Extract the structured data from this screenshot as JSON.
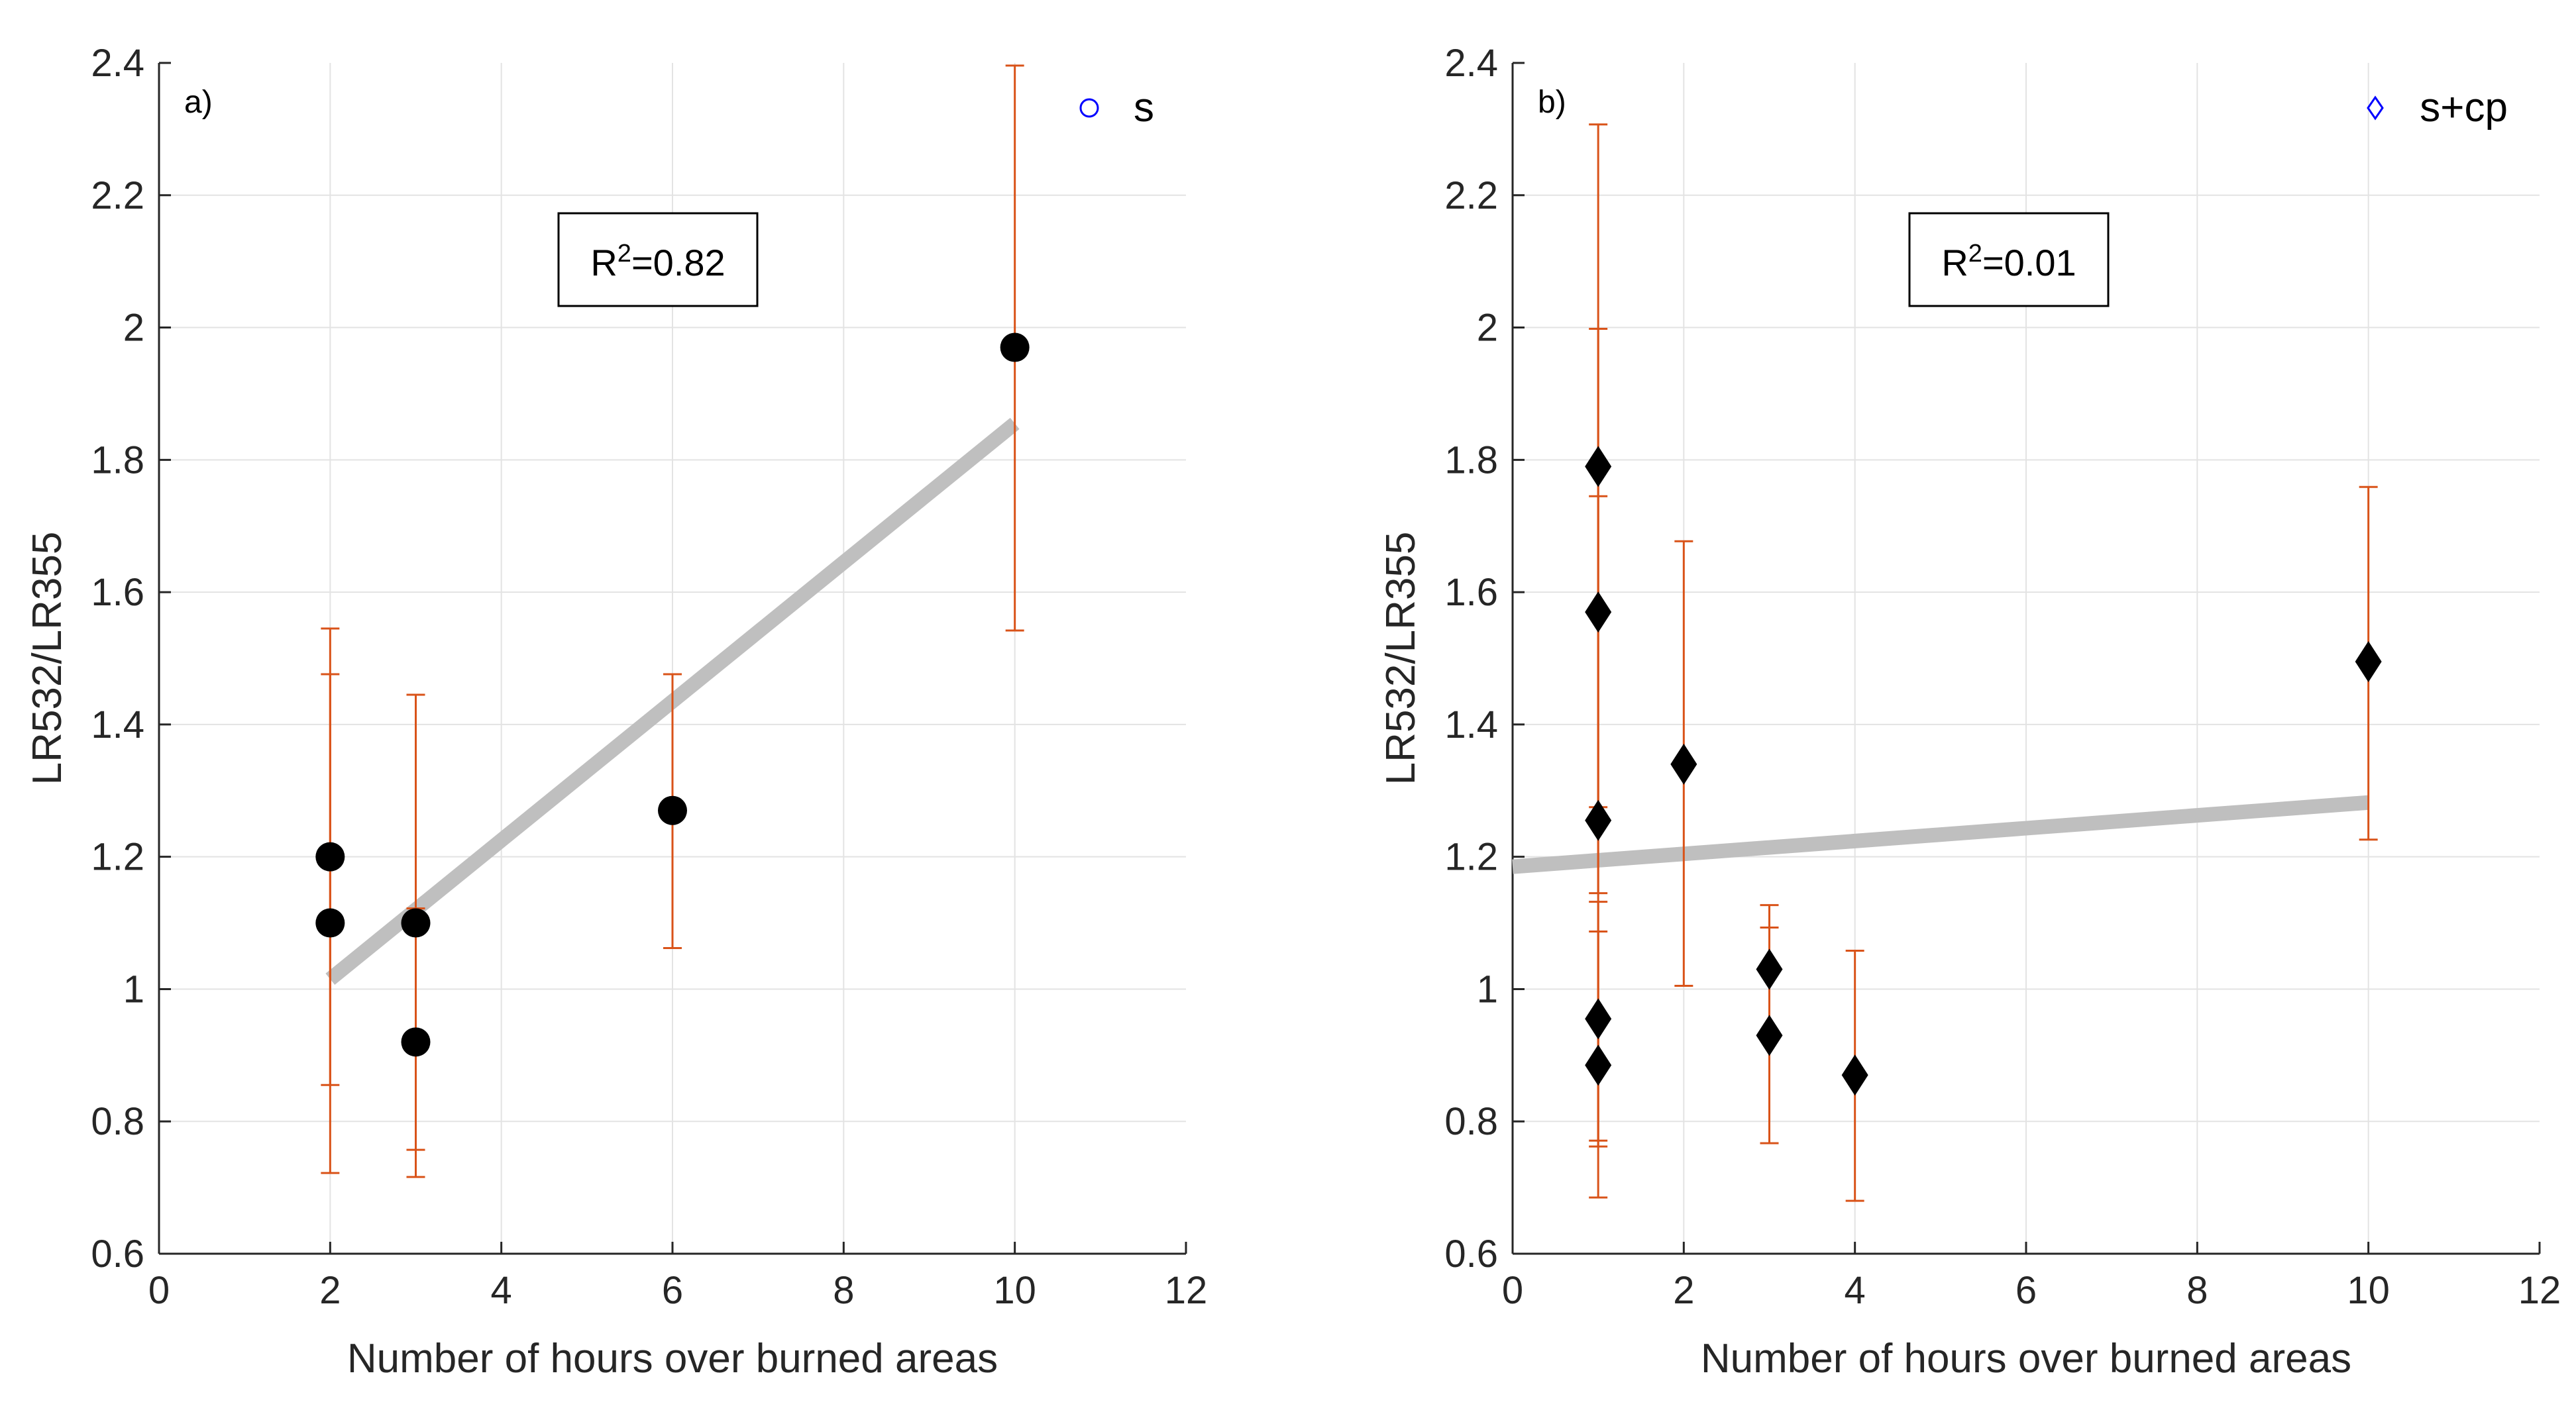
{
  "chart_data": [
    {
      "panel_id": "a",
      "type": "scatter",
      "panel_label": "a)",
      "xlabel": "Number of hours over burned areas",
      "ylabel": "LR532/LR355",
      "xlim": [
        0,
        12
      ],
      "ylim": [
        0.6,
        2.4
      ],
      "xticks": [
        0,
        2,
        4,
        6,
        8,
        10,
        12
      ],
      "xtick_labels": [
        "0",
        "2",
        "4",
        "6",
        "8",
        "10",
        "12"
      ],
      "yticks": [
        0.6,
        0.8,
        1,
        1.2,
        1.4,
        1.6,
        1.8,
        2,
        2.2,
        2.4
      ],
      "ytick_labels": [
        "0.6",
        "0.8",
        "1",
        "1.2",
        "1.4",
        "1.6",
        "1.8",
        "2",
        "2.2",
        "2.4"
      ],
      "grid": true,
      "legend": {
        "label": "s",
        "marker": "circle",
        "placement": "top-right"
      },
      "annotation": {
        "prefix": "R",
        "superscript": "2",
        "suffix": "=0.82"
      },
      "marker": "circle",
      "points": [
        {
          "x": 2,
          "y": 1.2,
          "err_low": 0.855,
          "err_high": 1.545
        },
        {
          "x": 2,
          "y": 1.1,
          "err_low": 0.722,
          "err_high": 1.476
        },
        {
          "x": 3,
          "y": 1.1,
          "err_low": 0.757,
          "err_high": 1.445
        },
        {
          "x": 3,
          "y": 0.92,
          "err_low": 0.716,
          "err_high": 1.122
        },
        {
          "x": 6,
          "y": 1.27,
          "err_low": 1.062,
          "err_high": 1.476
        },
        {
          "x": 10,
          "y": 1.97,
          "err_low": 1.542,
          "err_high": 2.396
        }
      ],
      "fit_line": {
        "x": [
          2,
          10
        ],
        "y": [
          1.015,
          1.855
        ]
      },
      "colors": {
        "marker": "#000000",
        "error_bar": "#d95319",
        "fit": "#bfbfbf",
        "legend_marker": "#0000ff",
        "grid": "#e3e3e3",
        "axis": "#262626"
      }
    },
    {
      "panel_id": "b",
      "type": "scatter",
      "panel_label": "b)",
      "xlabel": "Number of hours over burned areas",
      "ylabel": "LR532/LR355",
      "xlim": [
        0,
        12
      ],
      "ylim": [
        0.6,
        2.4
      ],
      "xticks": [
        0,
        2,
        4,
        6,
        8,
        10,
        12
      ],
      "xtick_labels": [
        "0",
        "2",
        "4",
        "6",
        "8",
        "10",
        "12"
      ],
      "yticks": [
        0.6,
        0.8,
        1,
        1.2,
        1.4,
        1.6,
        1.8,
        2,
        2.2,
        2.4
      ],
      "ytick_labels": [
        "0.6",
        "0.8",
        "1",
        "1.2",
        "1.4",
        "1.6",
        "1.8",
        "2",
        "2.2",
        "2.4"
      ],
      "grid": true,
      "legend": {
        "label": "s+cp",
        "marker": "diamond",
        "placement": "top-right"
      },
      "annotation": {
        "prefix": "R",
        "superscript": "2",
        "suffix": "=0.01"
      },
      "marker": "diamond",
      "points": [
        {
          "x": 1,
          "y": 1.79,
          "err_low": 1.275,
          "err_high": 2.307
        },
        {
          "x": 1,
          "y": 1.57,
          "err_low": 1.145,
          "err_high": 1.998
        },
        {
          "x": 1,
          "y": 1.255,
          "err_low": 0.771,
          "err_high": 1.745
        },
        {
          "x": 1,
          "y": 0.955,
          "err_low": 0.762,
          "err_high": 1.132
        },
        {
          "x": 1,
          "y": 0.885,
          "err_low": 0.685,
          "err_high": 1.087
        },
        {
          "x": 2,
          "y": 1.34,
          "err_low": 1.005,
          "err_high": 1.677
        },
        {
          "x": 3,
          "y": 1.03,
          "err_low": 0.932,
          "err_high": 1.127
        },
        {
          "x": 3,
          "y": 0.93,
          "err_low": 0.767,
          "err_high": 1.093
        },
        {
          "x": 4,
          "y": 0.87,
          "err_low": 0.68,
          "err_high": 1.058
        },
        {
          "x": 10,
          "y": 1.495,
          "err_low": 1.226,
          "err_high": 1.759
        }
      ],
      "fit_line": {
        "x": [
          0,
          10
        ],
        "y": [
          1.185,
          1.282
        ]
      },
      "colors": {
        "marker": "#000000",
        "error_bar": "#d95319",
        "fit": "#bfbfbf",
        "legend_marker": "#0000ff",
        "grid": "#e3e3e3",
        "axis": "#262626"
      }
    }
  ]
}
